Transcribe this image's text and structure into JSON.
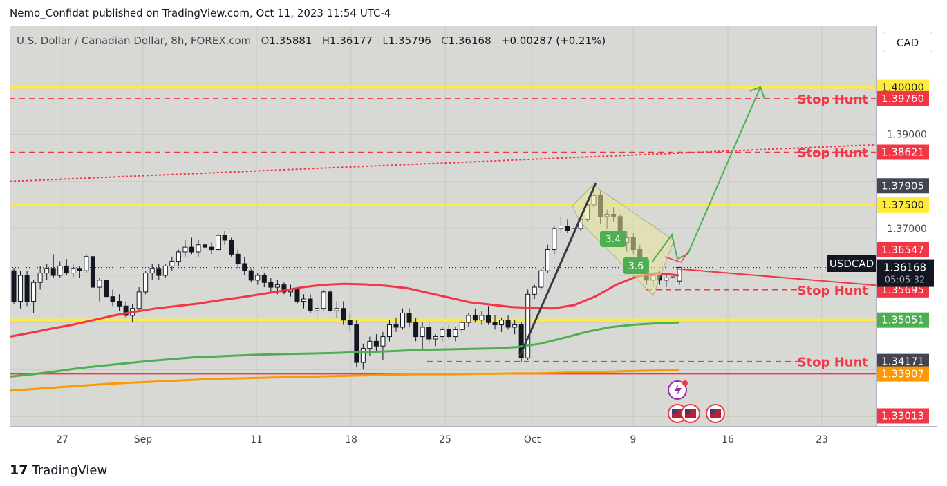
{
  "header": {
    "publisher": "Nemo_Confidat published on TradingView.com, Oct 11, 2023 11:54 UTC-4"
  },
  "symbol": {
    "name": "U.S. Dollar / Canadian Dollar, 8h, FOREX.com",
    "o_label": "O",
    "o": "1.35881",
    "h_label": "H",
    "h": "1.36177",
    "l_label": "L",
    "l": "1.35796",
    "c_label": "C",
    "c": "1.36168",
    "change": "+0.00287 (+0.21%)"
  },
  "currency_button": "CAD",
  "footer": {
    "brand": "TradingView",
    "logo_mark": "17"
  },
  "price_axis_ticks": [
    "1.39000",
    "1.37000"
  ],
  "price_tags": [
    {
      "label": "1.40000",
      "price": 1.4,
      "bg": "#ffeb3b",
      "fg": "#131722"
    },
    {
      "label": "1.39760",
      "price": 1.3976,
      "bg": "#f23645",
      "fg": "#ffffff"
    },
    {
      "label": "1.38621",
      "price": 1.38621,
      "bg": "#f23645",
      "fg": "#ffffff"
    },
    {
      "label": "1.37905",
      "price": 1.37905,
      "bg": "#434651",
      "fg": "#ffffff"
    },
    {
      "label": "1.37500",
      "price": 1.375,
      "bg": "#ffeb3b",
      "fg": "#131722"
    },
    {
      "label": "1.36547",
      "price": 1.36547,
      "bg": "#f23645",
      "fg": "#ffffff"
    },
    {
      "label": "1.35695",
      "price": 1.35695,
      "bg": "#f23645",
      "fg": "#ffffff"
    },
    {
      "label": "1.35051",
      "price": 1.35051,
      "bg": "#4caf50",
      "fg": "#ffffff"
    },
    {
      "label": "1.34171",
      "price": 1.34171,
      "bg": "#434651",
      "fg": "#ffffff"
    },
    {
      "label": "1.33907",
      "price": 1.33907,
      "bg": "#ff9800",
      "fg": "#ffffff"
    },
    {
      "label": "1.33013",
      "price": 1.33013,
      "bg": "#f23645",
      "fg": "#ffffff"
    }
  ],
  "last_price": {
    "ticker": "USDCAD",
    "price": "1.36168",
    "countdown": "05:05:32"
  },
  "annotations": {
    "stop_hunt_labels": [
      {
        "text": "Stop Hunt",
        "price": 1.3976
      },
      {
        "text": "Stop Hunt",
        "price": 1.38621
      },
      {
        "text": "Stop Hunt",
        "price": 1.35695
      },
      {
        "text": "Stop Hunt",
        "price": 1.34171
      }
    ],
    "badges": [
      {
        "text": "3.4",
        "color": "#4caf50"
      },
      {
        "text": "3.6",
        "color": "#4caf50"
      }
    ]
  },
  "chart_data": {
    "type": "candlestick",
    "title": "U.S. Dollar / Canadian Dollar, 8h, FOREX.com",
    "x_ticks": [
      "27",
      "Sep",
      "11",
      "18",
      "25",
      "Oct",
      "9",
      "16",
      "23"
    ],
    "ylim": [
      1.328,
      1.413
    ],
    "grid": true,
    "levels": [
      {
        "name": "yellow-resistance",
        "price": 1.4,
        "color": "#ffeb3b",
        "style": "solid"
      },
      {
        "name": "stop-hunt-1",
        "price": 1.3976,
        "color": "#f23645",
        "style": "dashed"
      },
      {
        "name": "stop-hunt-2",
        "price": 1.38621,
        "color": "#f23645",
        "style": "dashed"
      },
      {
        "name": "yellow-mid",
        "price": 1.375,
        "color": "#ffeb3b",
        "style": "solid"
      },
      {
        "name": "yellow-support",
        "price": 1.35051,
        "color": "#ffeb3b",
        "style": "solid"
      },
      {
        "name": "red-support",
        "price": 1.33907,
        "color": "#f23645",
        "style": "solid"
      }
    ],
    "candles": [
      [
        1.361,
        1.3616,
        1.354,
        1.3545
      ],
      [
        1.3545,
        1.361,
        1.353,
        1.36
      ],
      [
        1.36,
        1.361,
        1.3535,
        1.3545
      ],
      [
        1.3545,
        1.359,
        1.352,
        1.3585
      ],
      [
        1.3585,
        1.362,
        1.357,
        1.3605
      ],
      [
        1.3605,
        1.3625,
        1.359,
        1.3615
      ],
      [
        1.3615,
        1.3645,
        1.3595,
        1.36
      ],
      [
        1.36,
        1.363,
        1.3595,
        1.362
      ],
      [
        1.362,
        1.3635,
        1.36,
        1.3605
      ],
      [
        1.3605,
        1.3625,
        1.3595,
        1.3615
      ],
      [
        1.3615,
        1.362,
        1.3595,
        1.361
      ],
      [
        1.361,
        1.3645,
        1.3605,
        1.364
      ],
      [
        1.364,
        1.3645,
        1.357,
        1.3575
      ],
      [
        1.3575,
        1.3595,
        1.3545,
        1.359
      ],
      [
        1.359,
        1.3595,
        1.355,
        1.3555
      ],
      [
        1.3555,
        1.357,
        1.3535,
        1.3545
      ],
      [
        1.3545,
        1.356,
        1.3525,
        1.3535
      ],
      [
        1.3535,
        1.3545,
        1.351,
        1.3515
      ],
      [
        1.3515,
        1.354,
        1.35,
        1.353
      ],
      [
        1.353,
        1.3575,
        1.3525,
        1.3565
      ],
      [
        1.3565,
        1.361,
        1.356,
        1.3605
      ],
      [
        1.3605,
        1.3625,
        1.359,
        1.3615
      ],
      [
        1.3615,
        1.3625,
        1.359,
        1.36
      ],
      [
        1.36,
        1.3625,
        1.3595,
        1.362
      ],
      [
        1.362,
        1.364,
        1.361,
        1.363
      ],
      [
        1.363,
        1.3655,
        1.362,
        1.365
      ],
      [
        1.365,
        1.3675,
        1.364,
        1.366
      ],
      [
        1.366,
        1.368,
        1.3645,
        1.365
      ],
      [
        1.365,
        1.3675,
        1.364,
        1.3665
      ],
      [
        1.3665,
        1.368,
        1.365,
        1.366
      ],
      [
        1.366,
        1.367,
        1.3645,
        1.3655
      ],
      [
        1.3655,
        1.369,
        1.365,
        1.3685
      ],
      [
        1.3685,
        1.3695,
        1.3665,
        1.3675
      ],
      [
        1.3675,
        1.368,
        1.364,
        1.3645
      ],
      [
        1.3645,
        1.3655,
        1.3615,
        1.3625
      ],
      [
        1.3625,
        1.364,
        1.36,
        1.361
      ],
      [
        1.361,
        1.3615,
        1.3585,
        1.359
      ],
      [
        1.359,
        1.3605,
        1.358,
        1.36
      ],
      [
        1.36,
        1.3605,
        1.3575,
        1.3585
      ],
      [
        1.3585,
        1.3595,
        1.3565,
        1.3575
      ],
      [
        1.3575,
        1.359,
        1.356,
        1.358
      ],
      [
        1.358,
        1.3585,
        1.356,
        1.3565
      ],
      [
        1.3565,
        1.358,
        1.3555,
        1.357
      ],
      [
        1.357,
        1.3575,
        1.354,
        1.3545
      ],
      [
        1.3545,
        1.356,
        1.353,
        1.355
      ],
      [
        1.355,
        1.356,
        1.352,
        1.3525
      ],
      [
        1.3525,
        1.354,
        1.3505,
        1.353
      ],
      [
        1.353,
        1.357,
        1.3525,
        1.3565
      ],
      [
        1.3565,
        1.357,
        1.352,
        1.3525
      ],
      [
        1.3525,
        1.3545,
        1.351,
        1.353
      ],
      [
        1.353,
        1.3545,
        1.3495,
        1.3505
      ],
      [
        1.3505,
        1.352,
        1.348,
        1.3495
      ],
      [
        1.3495,
        1.3505,
        1.3405,
        1.3415
      ],
      [
        1.3415,
        1.3455,
        1.34,
        1.3445
      ],
      [
        1.3445,
        1.347,
        1.343,
        1.346
      ],
      [
        1.346,
        1.3475,
        1.344,
        1.345
      ],
      [
        1.345,
        1.348,
        1.342,
        1.347
      ],
      [
        1.347,
        1.3505,
        1.346,
        1.3495
      ],
      [
        1.3495,
        1.351,
        1.348,
        1.349
      ],
      [
        1.349,
        1.353,
        1.3485,
        1.352
      ],
      [
        1.352,
        1.353,
        1.349,
        1.35
      ],
      [
        1.35,
        1.351,
        1.346,
        1.347
      ],
      [
        1.347,
        1.35,
        1.344,
        1.349
      ],
      [
        1.349,
        1.35,
        1.3455,
        1.3465
      ],
      [
        1.3465,
        1.3475,
        1.345,
        1.347
      ],
      [
        1.347,
        1.349,
        1.346,
        1.3485
      ],
      [
        1.3485,
        1.3495,
        1.3465,
        1.347
      ],
      [
        1.347,
        1.349,
        1.346,
        1.3485
      ],
      [
        1.3485,
        1.3505,
        1.3475,
        1.35
      ],
      [
        1.35,
        1.352,
        1.349,
        1.3515
      ],
      [
        1.3515,
        1.353,
        1.35,
        1.3505
      ],
      [
        1.3505,
        1.3525,
        1.3495,
        1.3515
      ],
      [
        1.3515,
        1.3535,
        1.3495,
        1.35
      ],
      [
        1.35,
        1.3515,
        1.3485,
        1.3495
      ],
      [
        1.3495,
        1.351,
        1.348,
        1.3505
      ],
      [
        1.3505,
        1.3515,
        1.3485,
        1.349
      ],
      [
        1.349,
        1.3505,
        1.3475,
        1.3495
      ],
      [
        1.3495,
        1.35,
        1.3415,
        1.3425
      ],
      [
        1.3425,
        1.357,
        1.342,
        1.356
      ],
      [
        1.356,
        1.358,
        1.355,
        1.3575
      ],
      [
        1.3575,
        1.3615,
        1.357,
        1.361
      ],
      [
        1.361,
        1.3665,
        1.3605,
        1.3655
      ],
      [
        1.3655,
        1.3705,
        1.3645,
        1.37
      ],
      [
        1.37,
        1.3725,
        1.369,
        1.3705
      ],
      [
        1.3705,
        1.372,
        1.369,
        1.3695
      ],
      [
        1.3695,
        1.371,
        1.3685,
        1.37
      ],
      [
        1.37,
        1.3725,
        1.3695,
        1.372
      ],
      [
        1.372,
        1.376,
        1.3715,
        1.375
      ],
      [
        1.375,
        1.379,
        1.3745,
        1.377
      ],
      [
        1.377,
        1.378,
        1.371,
        1.3725
      ],
      [
        1.3725,
        1.374,
        1.37,
        1.373
      ],
      [
        1.373,
        1.3745,
        1.3715,
        1.3725
      ],
      [
        1.3725,
        1.373,
        1.366,
        1.367
      ],
      [
        1.367,
        1.3695,
        1.365,
        1.368
      ],
      [
        1.368,
        1.369,
        1.3645,
        1.3655
      ],
      [
        1.3655,
        1.3665,
        1.3605,
        1.3615
      ],
      [
        1.3615,
        1.3625,
        1.358,
        1.359
      ],
      [
        1.359,
        1.3605,
        1.3575,
        1.36
      ],
      [
        1.36,
        1.361,
        1.358,
        1.359
      ],
      [
        1.359,
        1.3605,
        1.3575,
        1.3595
      ],
      [
        1.3595,
        1.361,
        1.358,
        1.3597
      ],
      [
        1.3588,
        1.3618,
        1.358,
        1.3617
      ]
    ],
    "series": [
      {
        "name": "ema-red",
        "color": "#f23645",
        "values": [
          1.347,
          1.3478,
          1.3487,
          1.3495,
          1.3505,
          1.3515,
          1.3523,
          1.353,
          1.3535,
          1.354,
          1.3547,
          1.3553,
          1.356,
          1.3567,
          1.3575,
          1.358,
          1.3582,
          1.3581,
          1.3578,
          1.3573,
          1.3563,
          1.3553,
          1.3543,
          1.3538,
          1.3533,
          1.3531,
          1.353,
          1.3537,
          1.3555,
          1.358,
          1.3598,
          1.3605,
          1.36
        ]
      },
      {
        "name": "ema-green",
        "color": "#4caf50",
        "values": [
          1.3385,
          1.339,
          1.3396,
          1.3403,
          1.3408,
          1.3413,
          1.3418,
          1.3422,
          1.3426,
          1.3428,
          1.343,
          1.3432,
          1.3433,
          1.3434,
          1.3435,
          1.3437,
          1.3438,
          1.344,
          1.3442,
          1.3443,
          1.3444,
          1.3445,
          1.3448,
          1.3455,
          1.3467,
          1.348,
          1.349,
          1.3495,
          1.3498,
          1.35
        ]
      },
      {
        "name": "ema-orange",
        "color": "#ff9800",
        "values": [
          1.3355,
          1.3358,
          1.3361,
          1.3364,
          1.3367,
          1.337,
          1.3372,
          1.3374,
          1.3376,
          1.3378,
          1.338,
          1.3381,
          1.3382,
          1.3383,
          1.3384,
          1.3385,
          1.3386,
          1.3387,
          1.3388,
          1.3389,
          1.339,
          1.339,
          1.339,
          1.3391,
          1.3391,
          1.3392,
          1.3392,
          1.3393,
          1.3394,
          1.3395,
          1.3396,
          1.3397,
          1.3398,
          1.3399
        ]
      }
    ]
  }
}
